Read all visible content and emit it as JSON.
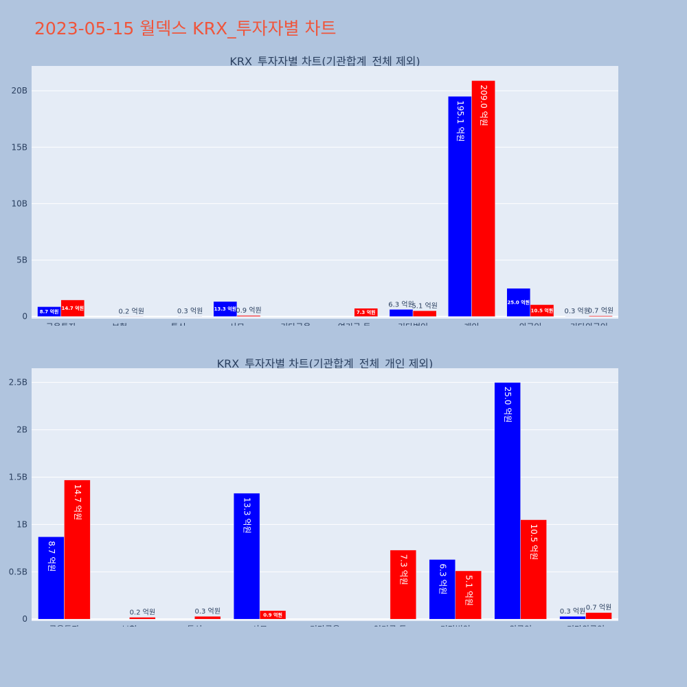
{
  "page_title": "2023-05-15 월덱스 KRX_투자자별 차트",
  "colors": {
    "background": "#b0c4de",
    "plot_bg": "#e5ecf6",
    "series_a": "#0000ff",
    "series_b": "#ff0000",
    "title": "#ef553b"
  },
  "chart_data": [
    {
      "type": "bar",
      "title": "KRX_투자자별 차트(기관합계_전체 제외)",
      "categories": [
        "금융투자",
        "보험",
        "투신",
        "사모",
        "기타금융",
        "연기금 등",
        "기타법인",
        "개인",
        "외국인",
        "기타외국인"
      ],
      "series": [
        {
          "values": [
            0.87,
            0,
            0,
            1.33,
            0,
            0,
            0.63,
            19.51,
            2.5,
            0.03
          ],
          "labels": [
            "8.7 억원",
            "",
            "",
            "13.3 억원",
            "",
            "",
            "6.3 억원",
            "195.1 억원",
            "25.0 억원",
            "0.3 억원"
          ]
        },
        {
          "values": [
            1.47,
            0.02,
            0.03,
            0.09,
            0,
            0.73,
            0.51,
            20.9,
            1.05,
            0.07
          ],
          "labels": [
            "14.7 억원",
            "0.2 억원",
            "0.3 억원",
            "0.9 억원",
            "",
            "7.3 억원",
            "5.1 억원",
            "209.0 억원",
            "10.5 억원",
            "0.7 억원"
          ]
        }
      ],
      "yticks": [
        0,
        5,
        10,
        15,
        20
      ],
      "ytick_labels": [
        "0",
        "5B",
        "10B",
        "15B",
        "20B"
      ],
      "ylim": [
        -0.2,
        22.2
      ],
      "grid": true,
      "legend": "none"
    },
    {
      "type": "bar",
      "title": "KRX_투자자별 차트(기관합계_전체_개인 제외)",
      "categories": [
        "금융투자",
        "보험",
        "투신",
        "사모",
        "기타금융",
        "연기금 등",
        "기타법인",
        "외국인",
        "기타외국인"
      ],
      "series": [
        {
          "values": [
            0.87,
            0,
            0,
            1.33,
            0,
            0,
            0.63,
            2.5,
            0.03
          ],
          "labels": [
            "8.7 억원",
            "",
            "",
            "13.3 억원",
            "",
            "",
            "6.3 억원",
            "25.0 억원",
            "0.3 억원"
          ]
        },
        {
          "values": [
            1.47,
            0.02,
            0.03,
            0.09,
            0,
            0.73,
            0.51,
            1.05,
            0.07
          ],
          "labels": [
            "14.7 억원",
            "0.2 억원",
            "0.3 억원",
            "0.9 억원",
            "",
            "7.3 억원",
            "5.1 억원",
            "10.5 억원",
            "0.7 억원"
          ]
        }
      ],
      "yticks": [
        0,
        0.5,
        1,
        1.5,
        2,
        2.5
      ],
      "ytick_labels": [
        "0",
        "0.5B",
        "1B",
        "1.5B",
        "2B",
        "2.5B"
      ],
      "ylim": [
        -0.02,
        2.65
      ],
      "grid": true,
      "legend": "none"
    }
  ]
}
